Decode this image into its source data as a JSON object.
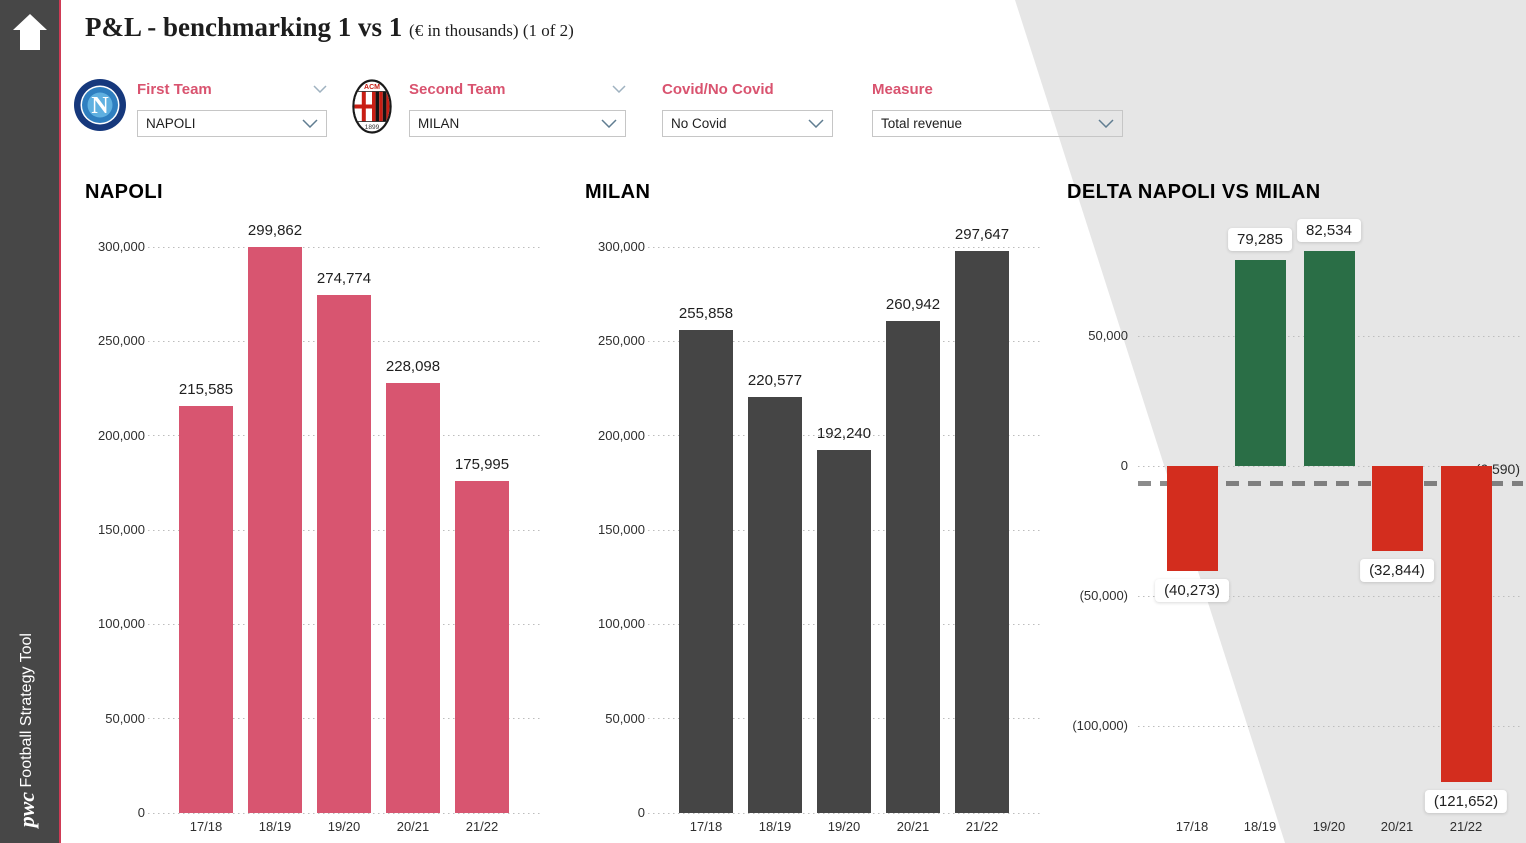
{
  "header": {
    "title": "P&L - benchmarking 1 vs 1",
    "subtitle": "(€ in thousands) (1 of 2)"
  },
  "sidebar": {
    "brand": "pwc",
    "product": "Football Strategy Tool"
  },
  "icons": {
    "sidebar_home": "home-icon",
    "filter_expand": "chevron-down-icon",
    "select_dropdown": "chevron-down-icon",
    "first_team_logo": "napoli-crest-icon",
    "second_team_logo": "milan-crest-icon"
  },
  "crests": {
    "napoli_letter": "N",
    "milan_top": "ACM",
    "milan_bottom": "1899"
  },
  "filters": [
    {
      "label": "First Team",
      "value": "NAPOLI"
    },
    {
      "label": "Second Team",
      "value": "MILAN"
    },
    {
      "label": "Covid/No Covid",
      "value": "No Covid"
    },
    {
      "label": "Measure",
      "value": "Total revenue"
    }
  ],
  "colors": {
    "accent_pink": "#d85570",
    "label_pink": "#d9536f",
    "milan_gray": "#454545",
    "delta_green": "#2a6e46",
    "delta_red": "#d32d1e",
    "sidebar_bg": "#474747",
    "sidebar_accent": "#cf3a55",
    "diagonal_gray": "#e6e6e6"
  },
  "chart_data": [
    {
      "type": "bar",
      "title": "NAPOLI",
      "categories": [
        "17/18",
        "18/19",
        "19/20",
        "20/21",
        "21/22"
      ],
      "values": [
        215585,
        299862,
        274774,
        228098,
        175995
      ],
      "labels": [
        "215,585",
        "299,862",
        "274,774",
        "228,098",
        "175,995"
      ],
      "ylim": [
        0,
        300000
      ],
      "yticks": [
        0,
        50000,
        100000,
        150000,
        200000,
        250000,
        300000
      ],
      "ytick_labels": [
        "0",
        "50,000",
        "100,000",
        "150,000",
        "200,000",
        "250,000",
        "300,000"
      ],
      "grid": "dotted",
      "legend": "none",
      "bar_color_key": "accent_pink"
    },
    {
      "type": "bar",
      "title": "MILAN",
      "categories": [
        "17/18",
        "18/19",
        "19/20",
        "20/21",
        "21/22"
      ],
      "values": [
        255858,
        220577,
        192240,
        260942,
        297647
      ],
      "labels": [
        "255,858",
        "220,577",
        "192,240",
        "260,942",
        "297,647"
      ],
      "ylim": [
        0,
        300000
      ],
      "yticks": [
        0,
        50000,
        100000,
        150000,
        200000,
        250000,
        300000
      ],
      "ytick_labels": [
        "0",
        "50,000",
        "100,000",
        "150,000",
        "200,000",
        "250,000",
        "300,000"
      ],
      "grid": "dotted",
      "legend": "none",
      "bar_color_key": "milan_gray"
    },
    {
      "type": "bar",
      "title": "DELTA NAPOLI VS MILAN",
      "categories": [
        "17/18",
        "18/19",
        "19/20",
        "20/21",
        "21/22"
      ],
      "values": [
        -40273,
        79285,
        82534,
        -32844,
        -121652
      ],
      "labels": [
        "(40,273)",
        "79,285",
        "82,534",
        "(32,844)",
        "(121,652)"
      ],
      "ylim": [
        -135000,
        85000
      ],
      "yticks": [
        50000,
        0,
        -50000,
        -100000
      ],
      "ytick_labels": [
        "50,000",
        "0",
        "(50,000)",
        "(100,000)"
      ],
      "grid": "dotted",
      "legend": "none",
      "positive_color_key": "delta_green",
      "negative_color_key": "delta_red",
      "reference_line": {
        "value": -6590,
        "label": "(6,590)",
        "style": "dashed"
      }
    }
  ]
}
